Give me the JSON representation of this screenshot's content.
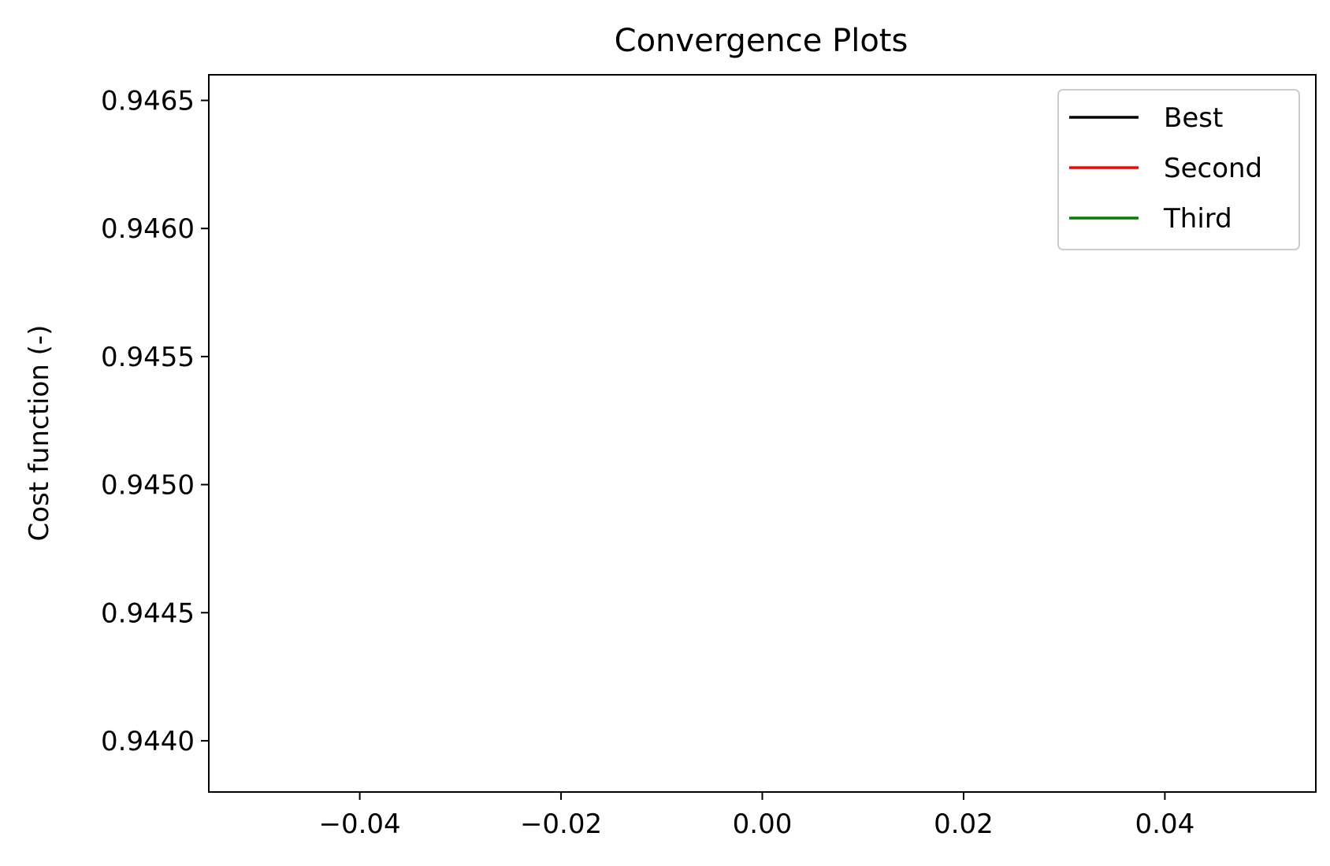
{
  "chart_data": {
    "type": "line",
    "title": "Convergence Plots",
    "xlabel": "",
    "ylabel": "Cost function (-)",
    "xlim": [
      -0.055,
      0.055
    ],
    "ylim": [
      0.9438,
      0.9466
    ],
    "xticks": [
      -0.04,
      -0.02,
      0.0,
      0.02,
      0.04
    ],
    "xtick_labels": [
      "−0.04",
      "−0.02",
      "0.00",
      "0.02",
      "0.04"
    ],
    "yticks": [
      0.944,
      0.9445,
      0.945,
      0.9455,
      0.946,
      0.9465
    ],
    "ytick_labels": [
      "0.9440",
      "0.9445",
      "0.9450",
      "0.9455",
      "0.9460",
      "0.9465"
    ],
    "grid": false,
    "legend_position": "top-right",
    "series": [
      {
        "name": "Best",
        "color": "#000000",
        "x": [],
        "y": []
      },
      {
        "name": "Second",
        "color": "#ff0000",
        "x": [],
        "y": []
      },
      {
        "name": "Third",
        "color": "#008000",
        "x": [],
        "y": []
      }
    ]
  }
}
